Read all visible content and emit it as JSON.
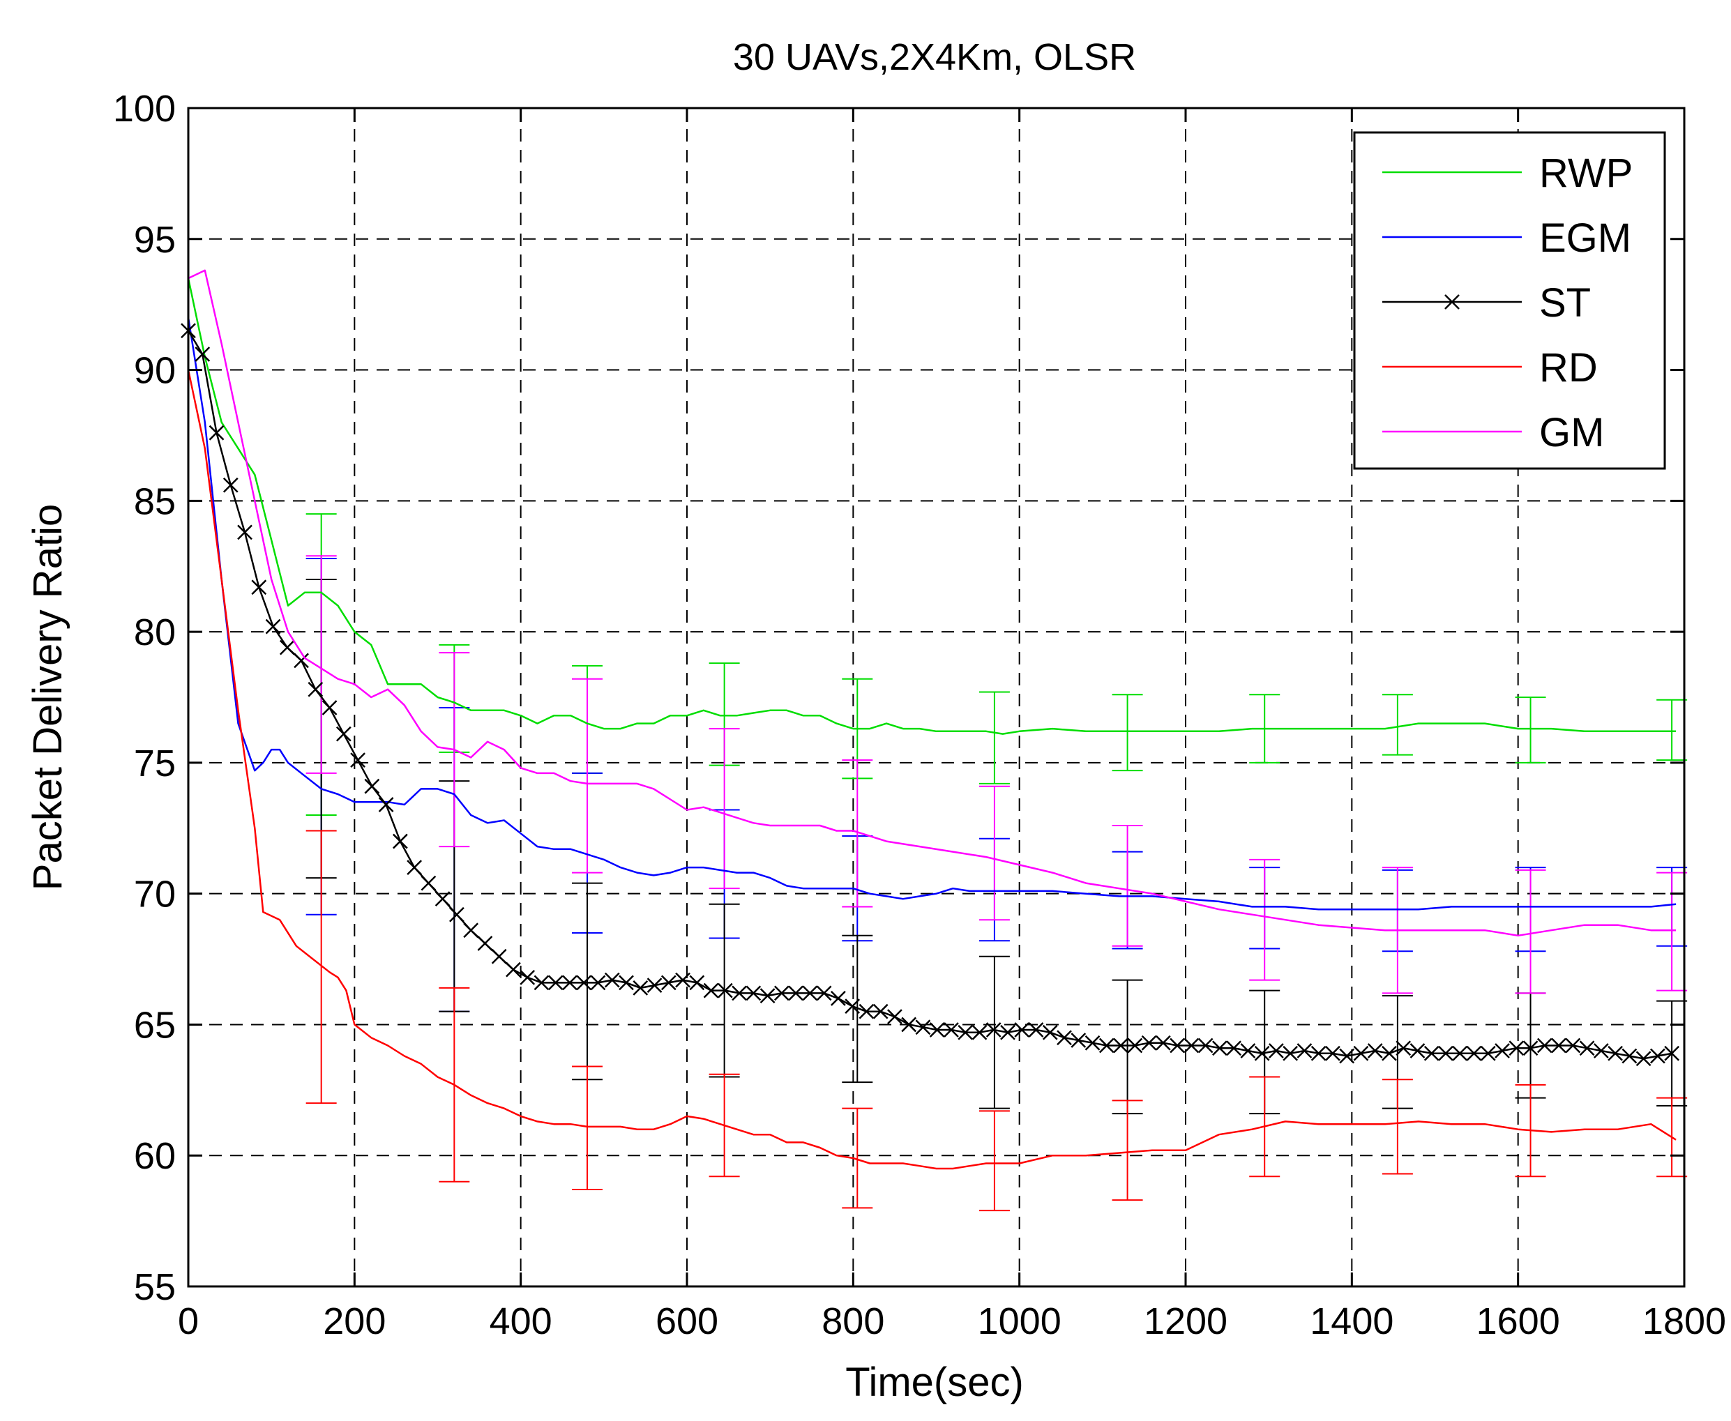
{
  "chart_data": {
    "type": "line",
    "title": "30 UAVs,2X4Km, OLSR",
    "xlabel": "Time(sec)",
    "ylabel": "Packet Delivery Ratio",
    "xlim": [
      0,
      1800
    ],
    "ylim": [
      55,
      100
    ],
    "grid": true,
    "legend_position": "top-right",
    "x_ticks": [
      0,
      200,
      400,
      600,
      800,
      1000,
      1200,
      1400,
      1600,
      1800
    ],
    "y_ticks": [
      55,
      60,
      65,
      70,
      75,
      80,
      85,
      90,
      95,
      100
    ],
    "series": [
      {
        "name": "RWP",
        "color": "#00dd00",
        "marker": "none",
        "x": [
          0,
          20,
          40,
          60,
          80,
          100,
          120,
          140,
          160,
          180,
          200,
          220,
          240,
          260,
          280,
          300,
          320,
          340,
          360,
          380,
          400,
          420,
          440,
          460,
          480,
          500,
          520,
          540,
          560,
          580,
          600,
          620,
          640,
          660,
          680,
          700,
          720,
          740,
          760,
          780,
          800,
          820,
          840,
          860,
          880,
          900,
          920,
          940,
          960,
          980,
          1000,
          1040,
          1080,
          1120,
          1160,
          1200,
          1240,
          1280,
          1320,
          1360,
          1400,
          1440,
          1480,
          1520,
          1560,
          1600,
          1640,
          1680,
          1720,
          1760,
          1790
        ],
        "y": [
          93.5,
          90.5,
          88,
          87,
          86,
          83.5,
          81,
          81.5,
          81.5,
          81,
          80,
          79.5,
          78,
          78,
          78,
          77.5,
          77.3,
          77,
          77,
          77,
          76.8,
          76.5,
          76.8,
          76.8,
          76.5,
          76.3,
          76.3,
          76.5,
          76.5,
          76.8,
          76.8,
          77,
          76.8,
          76.8,
          76.9,
          77,
          77,
          76.8,
          76.8,
          76.5,
          76.3,
          76.3,
          76.5,
          76.3,
          76.3,
          76.2,
          76.2,
          76.2,
          76.2,
          76.1,
          76.2,
          76.3,
          76.2,
          76.2,
          76.2,
          76.2,
          76.2,
          76.3,
          76.3,
          76.3,
          76.3,
          76.3,
          76.5,
          76.5,
          76.5,
          76.3,
          76.3,
          76.2,
          76.2,
          76.2,
          76.2
        ]
      },
      {
        "name": "EGM",
        "color": "#0000ff",
        "marker": "none",
        "x": [
          0,
          20,
          40,
          60,
          80,
          90,
          100,
          110,
          120,
          140,
          160,
          180,
          200,
          220,
          240,
          260,
          280,
          300,
          320,
          340,
          360,
          380,
          400,
          420,
          440,
          460,
          480,
          500,
          520,
          540,
          560,
          580,
          600,
          620,
          640,
          660,
          680,
          700,
          720,
          740,
          760,
          780,
          800,
          820,
          840,
          860,
          880,
          900,
          920,
          940,
          960,
          1000,
          1040,
          1080,
          1120,
          1160,
          1200,
          1240,
          1280,
          1320,
          1360,
          1400,
          1440,
          1480,
          1520,
          1560,
          1600,
          1640,
          1680,
          1720,
          1760,
          1790
        ],
        "y": [
          92,
          88,
          82,
          76.5,
          74.7,
          75,
          75.5,
          75.5,
          75,
          74.5,
          74,
          73.8,
          73.5,
          73.5,
          73.5,
          73.4,
          74,
          74,
          73.8,
          73,
          72.7,
          72.8,
          72.3,
          71.8,
          71.7,
          71.7,
          71.5,
          71.3,
          71,
          70.8,
          70.7,
          70.8,
          71,
          71,
          70.9,
          70.8,
          70.8,
          70.6,
          70.3,
          70.2,
          70.2,
          70.2,
          70.2,
          70,
          69.9,
          69.8,
          69.9,
          70,
          70.2,
          70.1,
          70.1,
          70.1,
          70.1,
          70,
          69.9,
          69.9,
          69.8,
          69.7,
          69.5,
          69.5,
          69.4,
          69.4,
          69.4,
          69.4,
          69.5,
          69.5,
          69.5,
          69.5,
          69.5,
          69.5,
          69.5,
          69.6
        ]
      },
      {
        "name": "ST",
        "color": "#000000",
        "marker": "x",
        "x": [
          0,
          17,
          34,
          51,
          68,
          85,
          102,
          119,
          136,
          153,
          170,
          187,
          204,
          221,
          238,
          255,
          272,
          289,
          306,
          323,
          340,
          357,
          374,
          391,
          408,
          425,
          442,
          459,
          476,
          493,
          510,
          527,
          544,
          561,
          578,
          595,
          612,
          629,
          646,
          663,
          680,
          697,
          714,
          731,
          748,
          765,
          782,
          799,
          816,
          833,
          850,
          867,
          884,
          901,
          918,
          935,
          952,
          969,
          986,
          1003,
          1020,
          1037,
          1054,
          1071,
          1088,
          1105,
          1122,
          1139,
          1156,
          1173,
          1190,
          1207,
          1224,
          1241,
          1258,
          1275,
          1292,
          1309,
          1326,
          1343,
          1360,
          1377,
          1394,
          1411,
          1428,
          1445,
          1462,
          1479,
          1496,
          1513,
          1530,
          1547,
          1564,
          1581,
          1598,
          1615,
          1632,
          1649,
          1666,
          1683,
          1700,
          1717,
          1734,
          1751,
          1768,
          1785
        ],
        "y": [
          91.5,
          90.6,
          87.6,
          85.6,
          83.8,
          81.7,
          80.2,
          79.4,
          78.9,
          77.8,
          77.1,
          76.1,
          75.1,
          74.1,
          73.4,
          72,
          71,
          70.4,
          69.8,
          69.2,
          68.6,
          68.1,
          67.6,
          67.1,
          66.8,
          66.6,
          66.6,
          66.6,
          66.6,
          66.6,
          66.7,
          66.6,
          66.4,
          66.5,
          66.6,
          66.7,
          66.6,
          66.3,
          66.3,
          66.2,
          66.2,
          66.1,
          66.2,
          66.2,
          66.2,
          66.2,
          66,
          65.7,
          65.5,
          65.5,
          65.3,
          65,
          64.9,
          64.8,
          64.8,
          64.7,
          64.7,
          64.8,
          64.7,
          64.8,
          64.8,
          64.7,
          64.5,
          64.4,
          64.3,
          64.2,
          64.2,
          64.2,
          64.3,
          64.3,
          64.2,
          64.2,
          64.2,
          64.1,
          64.1,
          64,
          63.9,
          64,
          63.9,
          64,
          63.9,
          63.9,
          63.8,
          63.9,
          64,
          63.9,
          64.1,
          64,
          63.9,
          63.9,
          63.9,
          63.9,
          63.9,
          64,
          64.1,
          64.1,
          64.2,
          64.2,
          64.2,
          64.1,
          64,
          63.9,
          63.8,
          63.7,
          63.8,
          63.9
        ]
      },
      {
        "name": "RD",
        "color": "#ff0000",
        "marker": "none",
        "x": [
          0,
          20,
          40,
          60,
          80,
          90,
          110,
          130,
          150,
          170,
          180,
          190,
          200,
          220,
          240,
          260,
          280,
          300,
          320,
          340,
          360,
          380,
          400,
          420,
          440,
          460,
          480,
          500,
          520,
          540,
          560,
          580,
          600,
          620,
          640,
          660,
          680,
          700,
          720,
          740,
          760,
          780,
          800,
          820,
          840,
          860,
          880,
          900,
          920,
          940,
          960,
          1000,
          1040,
          1080,
          1120,
          1160,
          1200,
          1240,
          1280,
          1320,
          1360,
          1400,
          1440,
          1480,
          1520,
          1560,
          1600,
          1640,
          1680,
          1720,
          1760,
          1790
        ],
        "y": [
          90,
          87,
          82,
          77,
          72.5,
          69.3,
          69,
          68,
          67.5,
          67,
          66.8,
          66.3,
          65,
          64.5,
          64.2,
          63.8,
          63.5,
          63,
          62.7,
          62.3,
          62,
          61.8,
          61.5,
          61.3,
          61.2,
          61.2,
          61.1,
          61.1,
          61.1,
          61,
          61,
          61.2,
          61.5,
          61.4,
          61.2,
          61,
          60.8,
          60.8,
          60.5,
          60.5,
          60.3,
          60,
          59.9,
          59.7,
          59.7,
          59.7,
          59.6,
          59.5,
          59.5,
          59.6,
          59.7,
          59.7,
          60,
          60,
          60.1,
          60.2,
          60.2,
          60.8,
          61,
          61.3,
          61.2,
          61.2,
          61.2,
          61.3,
          61.2,
          61.2,
          61,
          60.9,
          61,
          61,
          61.2,
          60.6
        ]
      },
      {
        "name": "GM",
        "color": "#ff00ff",
        "marker": "none",
        "x": [
          0,
          20,
          40,
          60,
          80,
          100,
          120,
          140,
          160,
          180,
          200,
          220,
          240,
          260,
          280,
          300,
          320,
          340,
          360,
          380,
          400,
          420,
          440,
          460,
          480,
          500,
          520,
          540,
          560,
          580,
          600,
          620,
          640,
          660,
          680,
          700,
          720,
          740,
          760,
          780,
          800,
          840,
          880,
          920,
          960,
          1000,
          1040,
          1080,
          1120,
          1160,
          1200,
          1240,
          1280,
          1320,
          1360,
          1400,
          1440,
          1480,
          1520,
          1560,
          1600,
          1640,
          1680,
          1720,
          1760,
          1790
        ],
        "y": [
          93.5,
          93.8,
          91,
          88,
          85,
          82,
          80,
          79,
          78.6,
          78.2,
          78,
          77.5,
          77.8,
          77.2,
          76.2,
          75.6,
          75.5,
          75.2,
          75.8,
          75.5,
          74.8,
          74.6,
          74.6,
          74.3,
          74.2,
          74.2,
          74.2,
          74.2,
          74,
          73.6,
          73.2,
          73.3,
          73.1,
          72.9,
          72.7,
          72.6,
          72.6,
          72.6,
          72.6,
          72.4,
          72.4,
          72,
          71.8,
          71.6,
          71.4,
          71.1,
          70.8,
          70.4,
          70.2,
          70,
          69.7,
          69.4,
          69.2,
          69,
          68.8,
          68.7,
          68.6,
          68.6,
          68.6,
          68.6,
          68.4,
          68.6,
          68.8,
          68.8,
          68.6,
          68.6
        ]
      }
    ],
    "error_bars": [
      {
        "series": "RWP",
        "x": [
          160,
          320,
          480,
          645,
          805,
          970,
          1130,
          1295,
          1455,
          1615,
          1785
        ],
        "low": [
          73,
          75.4,
          74.6,
          74.9,
          74.4,
          74.2,
          74.7,
          75,
          75.3,
          75,
          75.1
        ],
        "high": [
          84.5,
          79.5,
          78.7,
          78.8,
          78.2,
          77.7,
          77.6,
          77.6,
          77.6,
          77.5,
          77.4
        ]
      },
      {
        "series": "EGM",
        "x": [
          160,
          320,
          480,
          645,
          805,
          970,
          1130,
          1295,
          1455,
          1615,
          1785
        ],
        "low": [
          69.2,
          65.5,
          68.5,
          68.3,
          68.2,
          68.2,
          67.9,
          67.9,
          67.8,
          67.8,
          68
        ],
        "high": [
          82.8,
          77.1,
          74.6,
          73.2,
          72.2,
          72.1,
          71.6,
          71,
          70.9,
          71,
          71
        ]
      },
      {
        "series": "ST",
        "x": [
          160,
          320,
          480,
          645,
          805,
          970,
          1130,
          1295,
          1455,
          1615,
          1785
        ],
        "low": [
          70.6,
          65.5,
          62.9,
          63,
          62.8,
          61.8,
          61.6,
          61.6,
          61.8,
          62.2,
          61.9
        ],
        "high": [
          82,
          74.3,
          70.4,
          69.6,
          68.4,
          67.6,
          66.7,
          66.3,
          66.1,
          66.2,
          65.9
        ]
      },
      {
        "series": "RD",
        "x": [
          160,
          320,
          480,
          645,
          805,
          970,
          1130,
          1295,
          1455,
          1615,
          1785
        ],
        "low": [
          62,
          59,
          58.7,
          59.2,
          58,
          57.9,
          58.3,
          59.2,
          59.3,
          59.2,
          59.2
        ],
        "high": [
          72.4,
          66.4,
          63.4,
          63.1,
          61.8,
          61.7,
          62.1,
          63,
          62.9,
          62.7,
          62.2
        ]
      },
      {
        "series": "GM",
        "x": [
          160,
          320,
          480,
          645,
          805,
          970,
          1130,
          1295,
          1455,
          1615,
          1785
        ],
        "low": [
          74.6,
          71.8,
          70.8,
          70.2,
          69.5,
          69,
          68,
          66.7,
          66.2,
          66.2,
          66.3
        ],
        "high": [
          82.9,
          79.2,
          78.2,
          76.3,
          75.1,
          74.1,
          72.6,
          71.3,
          71,
          70.9,
          70.8
        ]
      }
    ]
  }
}
